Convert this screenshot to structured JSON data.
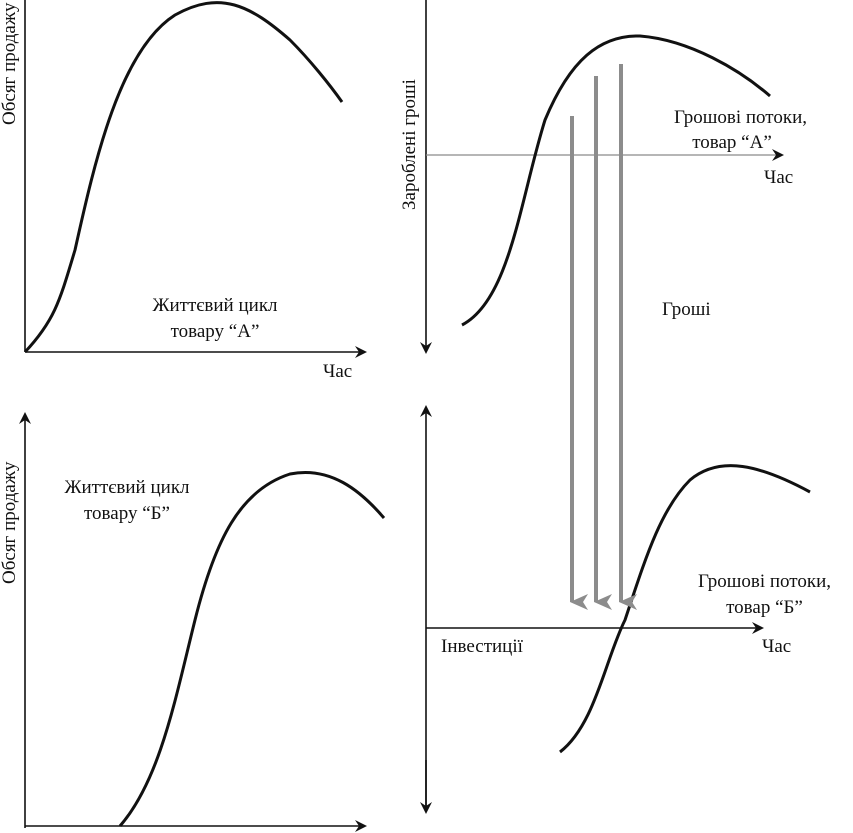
{
  "top_left": {
    "ylabel": "Обсяг продажу",
    "xlabel": "Час",
    "caption_line1": "Життєвий цикл",
    "caption_line2": "товару “А”"
  },
  "bottom_left": {
    "ylabel": "Обсяг продажу",
    "caption_line1": "Життєвий цикл",
    "caption_line2": "товару  “Б”"
  },
  "top_right": {
    "ylabel": "Зароблені гроші",
    "caption_line1": "Грошові потоки,",
    "caption_line2": "товар  “А”",
    "xlabel": "Час"
  },
  "middle": {
    "label": "Гроші"
  },
  "bottom_right": {
    "caption_line1": "Грошові потоки,",
    "caption_line2": "товар  “Б”",
    "xlabel": "Час",
    "investments": "Інвестиції"
  },
  "colors": {
    "ink": "#111111",
    "thin_axis": "#8a8a8a",
    "money_arrow": "#8c8c8c"
  }
}
